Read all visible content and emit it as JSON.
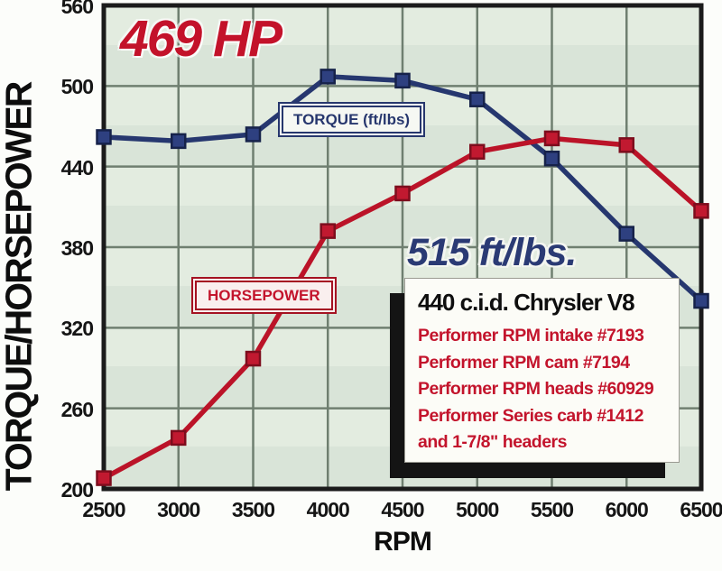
{
  "chart_data": {
    "type": "line",
    "x": [
      2500,
      3000,
      3500,
      4000,
      4500,
      5000,
      5500,
      6000,
      6500
    ],
    "x_tick_labels": [
      "2500",
      "3000",
      "3500",
      "4000",
      "4500",
      "5000",
      "5500",
      "6000",
      "6500"
    ],
    "series": [
      {
        "name": "TORQUE (ft/lbs)",
        "values": [
          462,
          459,
          464,
          507,
          504,
          490,
          446,
          390,
          340
        ]
      },
      {
        "name": "HORSEPOWER",
        "values": [
          208,
          238,
          297,
          392,
          420,
          451,
          461,
          456,
          407
        ]
      }
    ],
    "xlabel": "RPM",
    "ylabel": "TORQUE/HORSEPOWER",
    "ylim": [
      200,
      560
    ],
    "xlim": [
      2500,
      6500
    ],
    "y_ticks": [
      200,
      260,
      320,
      380,
      440,
      500,
      560
    ],
    "grid": true,
    "legend_position": "inline boxes on curves",
    "peak_horsepower": 469,
    "peak_torque_ftlbs": 515
  },
  "annotations": {
    "hp_peak": "469 HP",
    "tq_peak": "515 ft/lbs."
  },
  "info_box": {
    "title": "440 c.i.d. Chrysler V8",
    "lines": [
      "Performer RPM intake #7193",
      "Performer RPM cam #7194",
      "Performer RPM heads #60929",
      "Performer Series carb #1412",
      "and 1-7/8\" headers"
    ]
  },
  "colors": {
    "torque_line": "#26376f",
    "torque_marker": "#2e4080",
    "torque_marker_edge": "#16224a",
    "hp_line": "#bb1328",
    "hp_marker": "#c11930",
    "hp_marker_edge": "#7d0d1d",
    "grid": "#6f7f70",
    "plot_border": "#1b1b1b",
    "annotation_red": "#c3122a",
    "annotation_blue": "#2a3a74",
    "plot_background": "#dfe8dd"
  }
}
